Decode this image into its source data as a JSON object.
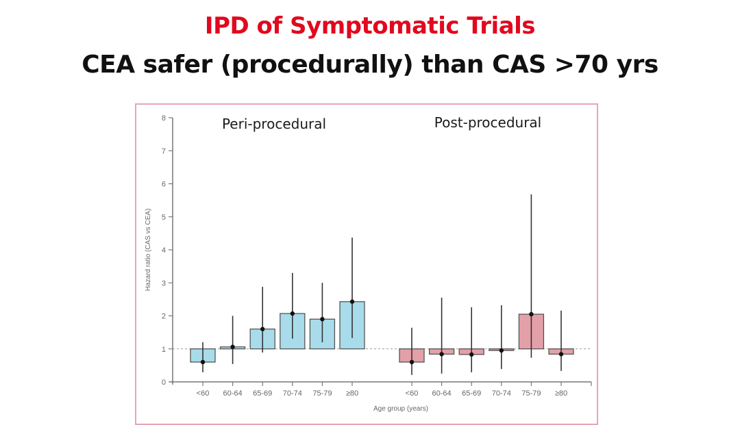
{
  "slide": {
    "title": "IPD of Symptomatic Trials",
    "subtitle": "CEA safer (procedurally) than CAS >70 yrs",
    "title_color": "#e2081e",
    "frame_color": "#e5a6b4"
  },
  "chart_data": {
    "type": "bar",
    "title": "",
    "xlabel": "Age group (years)",
    "ylabel": "Hazard ratio (CAS vs CEA)",
    "ylim": [
      0,
      8
    ],
    "yticks": [
      "0",
      "1",
      "2",
      "3",
      "4",
      "5",
      "6",
      "7",
      "8"
    ],
    "reference_line": 1,
    "bar_baseline": 1,
    "categories": [
      "<60",
      "60-64",
      "65-69",
      "70-74",
      "75-79",
      "≥80"
    ],
    "panels": [
      {
        "name": "Peri-procedural",
        "color": "#a8dcea",
        "values": [
          0.6,
          1.06,
          1.6,
          2.07,
          1.9,
          2.43
        ],
        "ci_lower": [
          0.29,
          0.54,
          0.89,
          1.31,
          1.2,
          1.33
        ],
        "ci_upper": [
          1.2,
          2.0,
          2.88,
          3.3,
          3.0,
          4.37
        ]
      },
      {
        "name": "Post-procedural",
        "color": "#e3a0a8",
        "values": [
          0.6,
          0.84,
          0.83,
          0.95,
          2.05,
          0.84
        ],
        "ci_lower": [
          0.21,
          0.25,
          0.29,
          0.39,
          0.73,
          0.33
        ],
        "ci_upper": [
          1.64,
          2.55,
          2.26,
          2.32,
          5.68,
          2.16
        ]
      }
    ]
  }
}
